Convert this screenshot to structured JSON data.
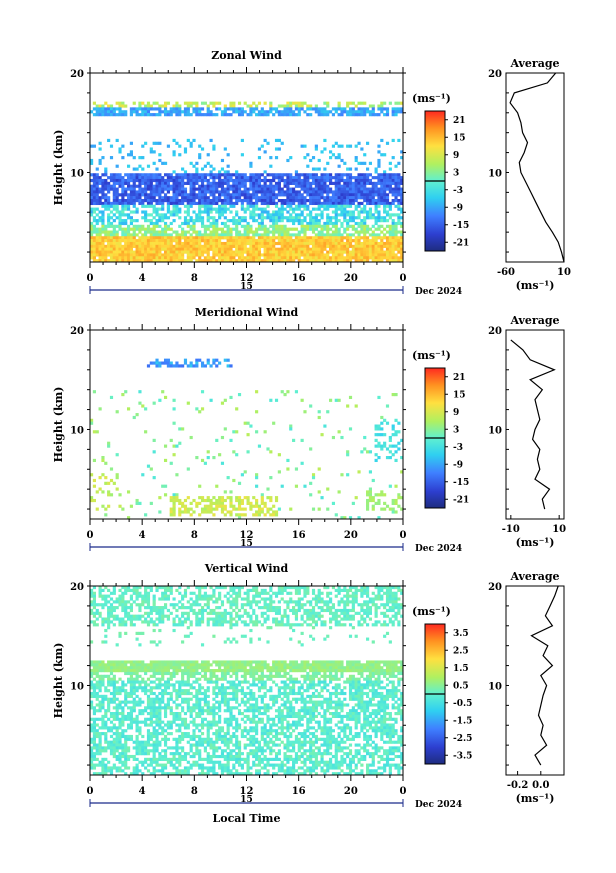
{
  "chart_data": [
    {
      "type": "heatmap",
      "title": "Zonal Wind",
      "ylabel": "Height (km)",
      "xlabel": "",
      "xticks": [
        "0",
        "4",
        "8",
        "12",
        "16",
        "20",
        "0"
      ],
      "yticks": [
        "20",
        "10"
      ],
      "ylim": [
        1,
        20
      ],
      "date_label": "15",
      "month_label": "Dec 2024",
      "units": "(ms⁻¹)",
      "colorbar_ticks": [
        "21",
        "15",
        "9",
        "3",
        "-3",
        "-9",
        "-15",
        "-21"
      ],
      "colorbar_range": [
        -24,
        24
      ],
      "profile": {
        "title": "Average",
        "xlabel": "(ms⁻¹)",
        "xticks": [
          "-60",
          "10"
        ],
        "xlim": [
          -60,
          10
        ],
        "yticks": [
          "20",
          "10"
        ],
        "heights": [
          1,
          2,
          3,
          4,
          5,
          6,
          7,
          8,
          9,
          10,
          11,
          12,
          13,
          14,
          15,
          16,
          17,
          18,
          19,
          20
        ],
        "values": [
          10,
          7,
          3,
          -4,
          -12,
          -18,
          -24,
          -30,
          -36,
          -42,
          -44,
          -38,
          -34,
          -40,
          -42,
          -46,
          -55,
          -50,
          -10,
          0
        ]
      }
    },
    {
      "type": "heatmap",
      "title": "Meridional Wind",
      "ylabel": "Height (km)",
      "xlabel": "",
      "xticks": [
        "0",
        "4",
        "8",
        "12",
        "16",
        "20",
        "0"
      ],
      "yticks": [
        "20",
        "10"
      ],
      "ylim": [
        1,
        20
      ],
      "date_label": "15",
      "month_label": "Dec 2024",
      "units": "(ms⁻¹)",
      "colorbar_ticks": [
        "21",
        "15",
        "9",
        "3",
        "-3",
        "-9",
        "-15",
        "-21"
      ],
      "colorbar_range": [
        -24,
        24
      ],
      "profile": {
        "title": "Average",
        "xlabel": "(ms⁻¹)",
        "xticks": [
          "-10",
          "10"
        ],
        "xlim": [
          -12,
          12
        ],
        "yticks": [
          "20",
          "10"
        ],
        "heights": [
          2,
          3,
          4,
          5,
          6,
          7,
          8,
          9,
          10,
          11,
          12,
          13,
          14,
          15,
          16,
          17,
          18,
          19
        ],
        "values": [
          4,
          3,
          6,
          0,
          2,
          1,
          2,
          -1,
          0,
          2,
          1,
          0,
          3,
          -2,
          8,
          -2,
          -5,
          -10
        ]
      }
    },
    {
      "type": "heatmap",
      "title": "Vertical Wind",
      "ylabel": "Height (km)",
      "xlabel": "Local Time",
      "xticks": [
        "0",
        "4",
        "8",
        "12",
        "16",
        "20",
        "0"
      ],
      "yticks": [
        "20",
        "10"
      ],
      "ylim": [
        1,
        20
      ],
      "date_label": "15",
      "month_label": "Dec 2024",
      "units": "(ms⁻¹)",
      "colorbar_ticks": [
        "3.5",
        "2.5",
        "1.5",
        "0.5",
        "-0.5",
        "-1.5",
        "-2.5",
        "-3.5"
      ],
      "colorbar_range": [
        -4,
        4
      ],
      "profile": {
        "title": "Average",
        "xlabel": "(ms⁻¹)",
        "xticks": [
          "-0.2",
          "0.0"
        ],
        "xlim": [
          -0.3,
          0.2
        ],
        "yticks": [
          "20",
          "10"
        ],
        "heights": [
          2,
          3,
          4,
          5,
          6,
          7,
          8,
          9,
          10,
          11,
          12,
          13,
          14,
          15,
          16,
          17,
          18,
          19,
          20
        ],
        "values": [
          0.0,
          -0.05,
          0.05,
          0.0,
          0.02,
          -0.02,
          0.0,
          0.02,
          0.05,
          0.0,
          0.1,
          0.02,
          0.06,
          -0.08,
          0.1,
          0.04,
          0.08,
          0.12,
          0.15
        ]
      }
    }
  ]
}
